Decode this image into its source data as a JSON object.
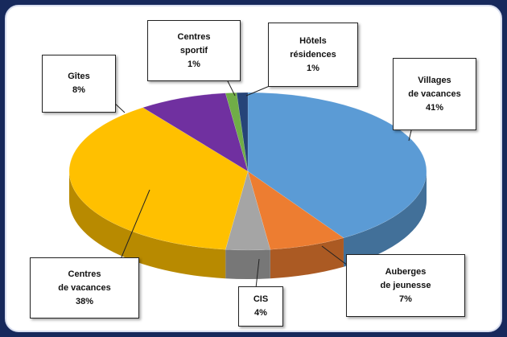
{
  "chart_data": {
    "type": "pie3d",
    "categories": [
      "Villages de vacances",
      "Auberges de jeunesse",
      "CIS",
      "Centres de vacances",
      "Gîtes",
      "Centres sportif",
      "Hôtels résidences"
    ],
    "values": [
      41,
      7,
      4,
      38,
      8,
      1,
      1
    ],
    "value_labels": [
      "41%",
      "7%",
      "4%",
      "38%",
      "8%",
      "1%",
      "1%"
    ],
    "colors": [
      "#5b9bd5",
      "#ed7d31",
      "#a5a5a5",
      "#ffc000",
      "#7030a0",
      "#70ad47",
      "#264478"
    ]
  }
}
